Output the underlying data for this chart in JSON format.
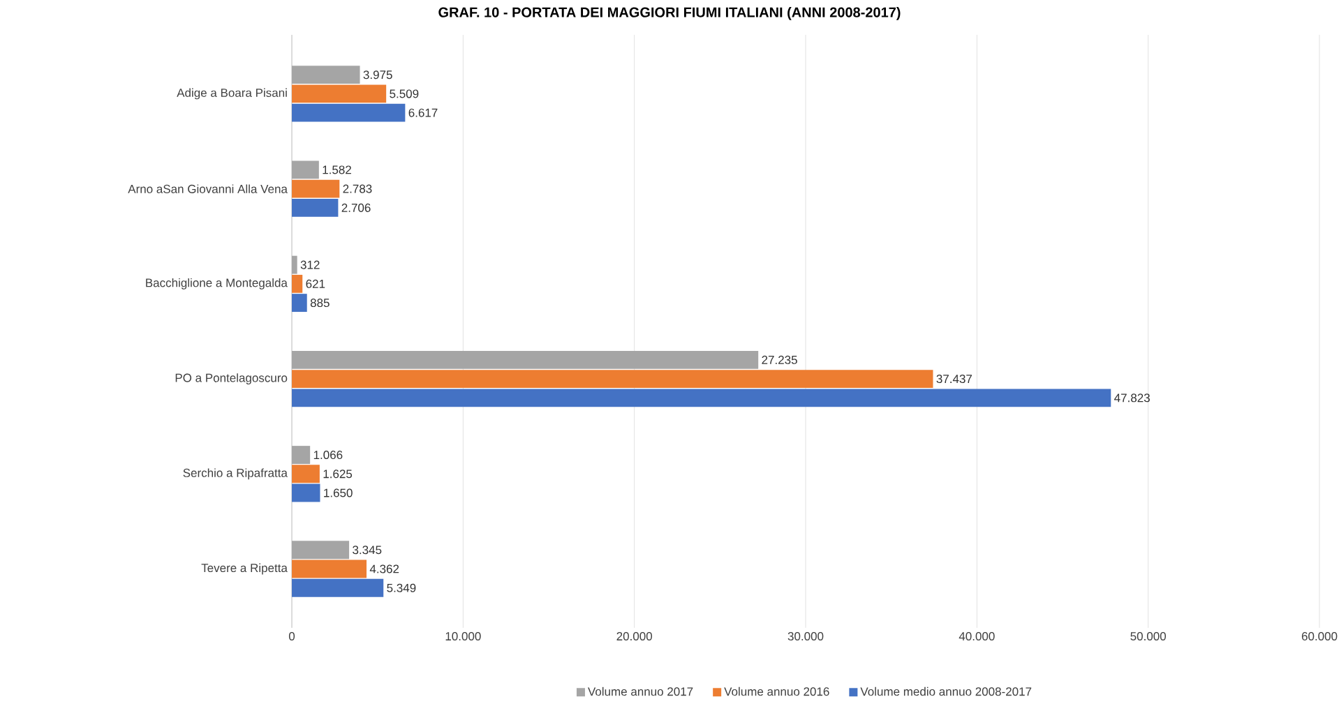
{
  "chart_data": {
    "type": "bar",
    "orientation": "horizontal",
    "title": "GRAF. 10 - PORTATA DEI MAGGIORI FIUMI ITALIANI (ANNI 2008-2017)",
    "categories": [
      "Adige a Boara Pisani",
      "Arno aSan Giovanni Alla Vena",
      "Bacchiglione a Montegalda",
      "PO a Pontelagoscuro",
      "Serchio a Ripafratta",
      "Tevere a Ripetta"
    ],
    "series": [
      {
        "name": "Volume annuo 2017",
        "color": "#a5a5a5",
        "values": [
          3975,
          1582,
          312,
          27235,
          1066,
          3345
        ],
        "value_labels": [
          "3.975",
          "1.582",
          "312",
          "27.235",
          "1.066",
          "3.345"
        ]
      },
      {
        "name": "Volume annuo 2016",
        "color": "#ed7d31",
        "values": [
          5509,
          2783,
          621,
          37437,
          1625,
          4362
        ],
        "value_labels": [
          "5.509",
          "2.783",
          "621",
          "37.437",
          "1.625",
          "4.362"
        ]
      },
      {
        "name": "Volume medio annuo 2008-2017",
        "color": "#4472c4",
        "values": [
          6617,
          2706,
          885,
          47823,
          1650,
          5349
        ],
        "value_labels": [
          "6.617",
          "2.706",
          "885",
          "47.823",
          "1.650",
          "5.349"
        ]
      }
    ],
    "xlim": [
      0,
      60000
    ],
    "xticks": [
      {
        "value": 0,
        "label": "0"
      },
      {
        "value": 10000,
        "label": "10.000"
      },
      {
        "value": 20000,
        "label": "20.000"
      },
      {
        "value": 30000,
        "label": "30.000"
      },
      {
        "value": 40000,
        "label": "40.000"
      },
      {
        "value": 50000,
        "label": "50.000"
      },
      {
        "value": 60000,
        "label": "60.000"
      }
    ],
    "grid": "x",
    "legend": "bottom"
  }
}
